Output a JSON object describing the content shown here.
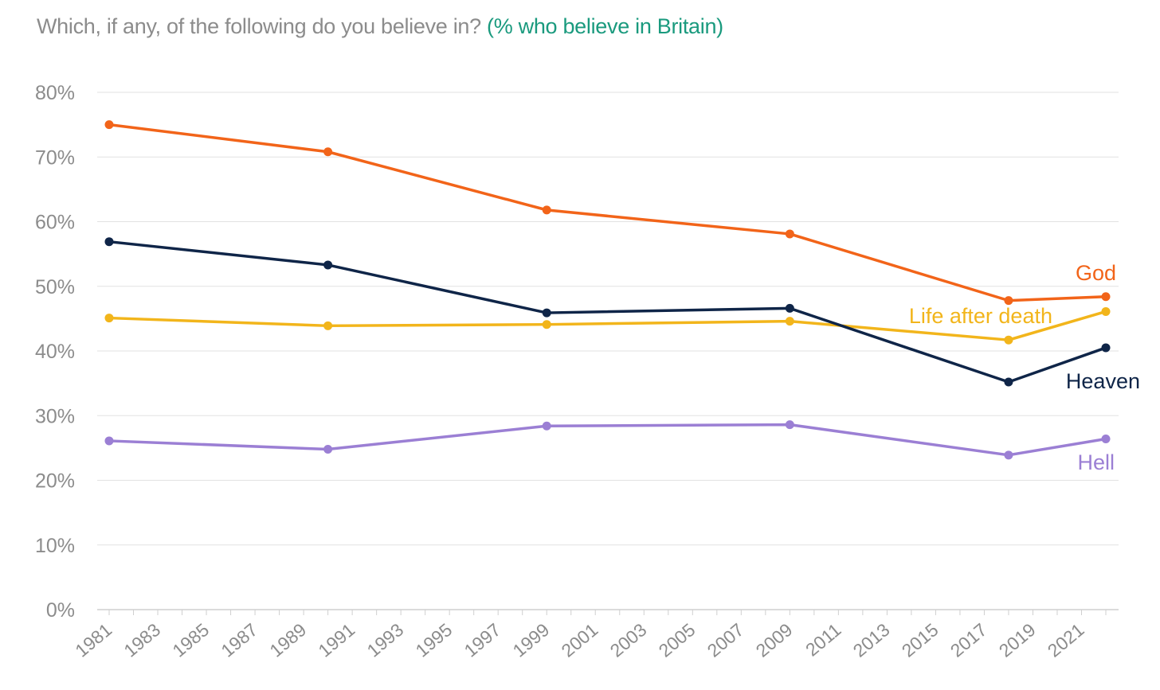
{
  "chart_data": {
    "type": "line",
    "title": "Which, if any, of the following do you believe in?",
    "subtitle": "(% who believe in Britain)",
    "xlabel": "",
    "ylabel": "",
    "xlim": [
      1981,
      2022
    ],
    "ylim": [
      0,
      80
    ],
    "y_ticks": [
      0,
      10,
      20,
      30,
      40,
      50,
      60,
      70,
      80
    ],
    "y_tick_labels": [
      "0%",
      "10%",
      "20%",
      "30%",
      "40%",
      "50%",
      "60%",
      "70%",
      "80%"
    ],
    "x_tick_labels": [
      "1981",
      "1983",
      "1985",
      "1987",
      "1989",
      "1991",
      "1993",
      "1995",
      "1997",
      "1999",
      "2001",
      "2003",
      "2005",
      "2007",
      "2009",
      "2011",
      "2013",
      "2015",
      "2017",
      "2019",
      "2021"
    ],
    "grid": true,
    "legend": "direct labels at line ends",
    "series": [
      {
        "name": "God",
        "color": "#f26419",
        "x": [
          1981,
          1990,
          1999,
          2009,
          2018,
          2022
        ],
        "values": [
          75,
          70.8,
          61.8,
          58.1,
          47.8,
          48.4
        ]
      },
      {
        "name": "Life after death",
        "color": "#f2b51b",
        "x": [
          1981,
          1990,
          1999,
          2009,
          2018,
          2022
        ],
        "values": [
          45.1,
          43.9,
          44.1,
          44.6,
          41.7,
          46.1
        ]
      },
      {
        "name": "Heaven",
        "color": "#0f2548",
        "x": [
          1981,
          1990,
          1999,
          2009,
          2018,
          2022
        ],
        "values": [
          56.9,
          53.3,
          45.9,
          46.6,
          35.2,
          40.5
        ]
      },
      {
        "name": "Hell",
        "color": "#9b7fd4",
        "x": [
          1981,
          1990,
          1999,
          2009,
          2018,
          2022
        ],
        "values": [
          26.1,
          24.8,
          28.4,
          28.6,
          23.9,
          26.4
        ]
      }
    ]
  }
}
